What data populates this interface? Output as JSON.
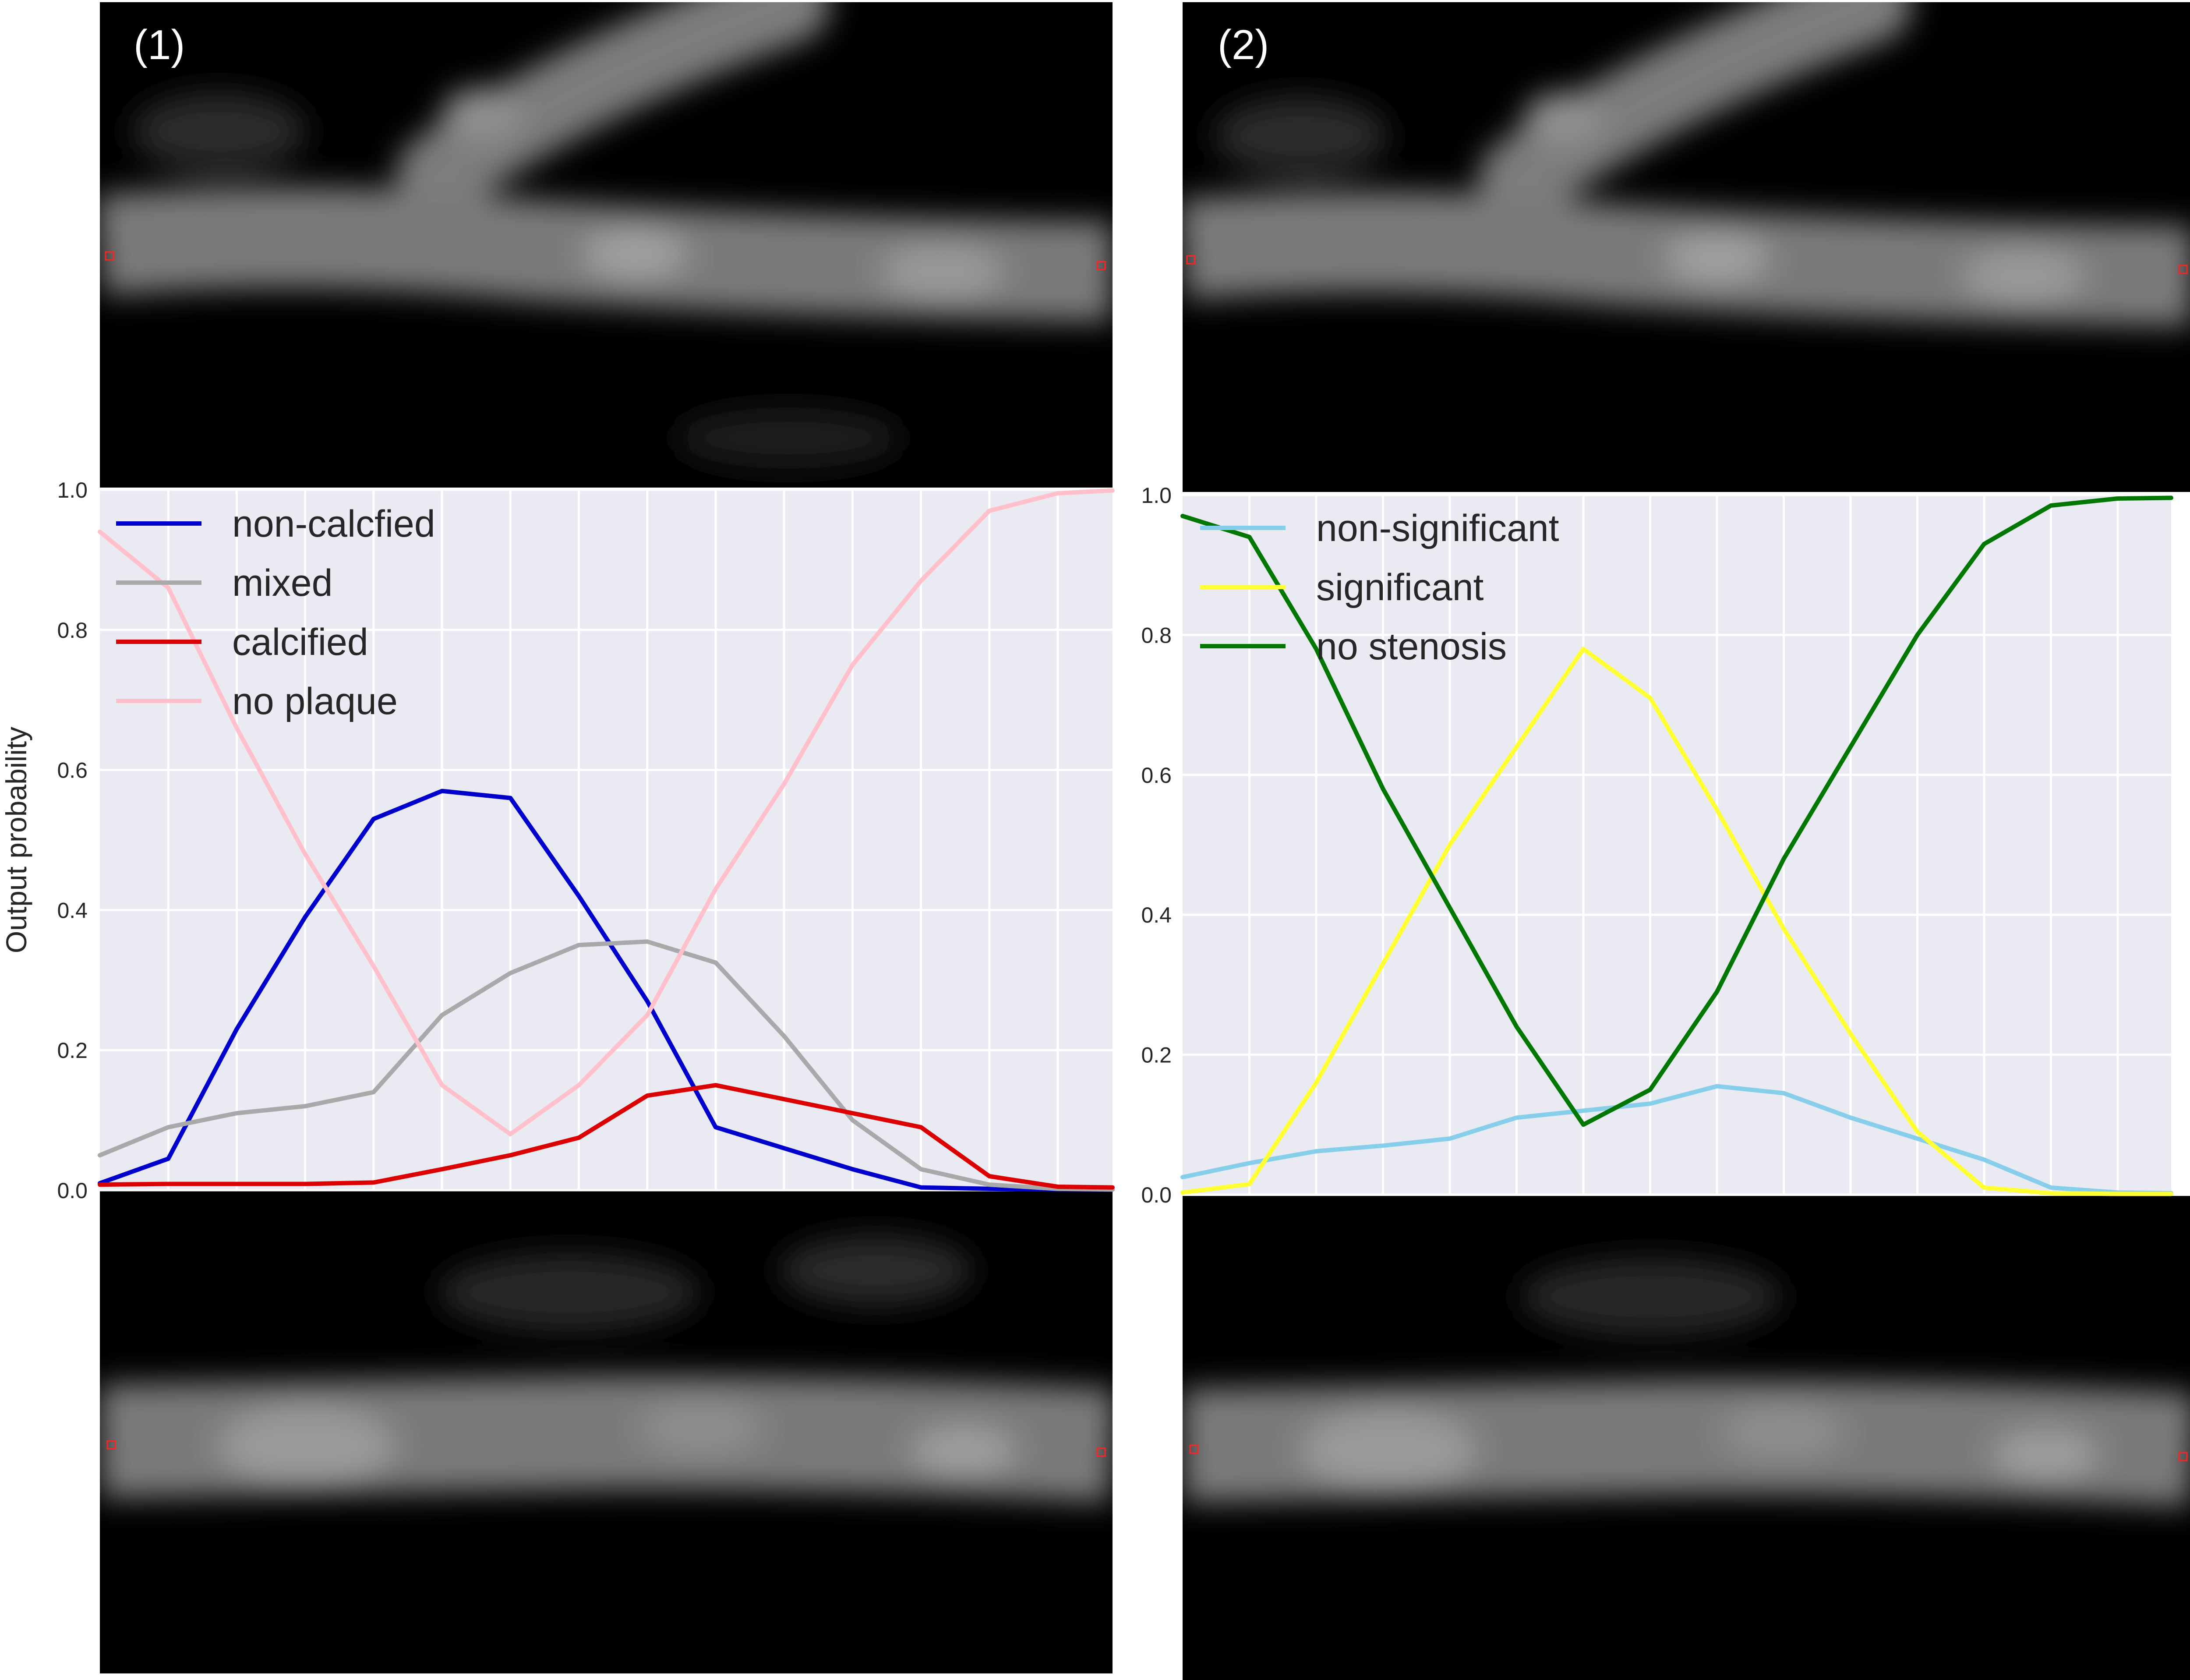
{
  "panels": [
    {
      "label": "(1)"
    },
    {
      "label": "(2)"
    }
  ],
  "chart_data": [
    {
      "type": "line",
      "ylabel": "Output probability",
      "ylim": [
        0,
        1
      ],
      "xlim": [
        0,
        14.8
      ],
      "yticks": [
        "0.0",
        "0.2",
        "0.4",
        "0.6",
        "0.8",
        "1.0"
      ],
      "grid": true,
      "legend": "top-left",
      "series": [
        {
          "name": "non-calcfied",
          "color": "#0000cc",
          "x": [
            0,
            1,
            2,
            3,
            4,
            5,
            6,
            7,
            8,
            9,
            10,
            11,
            12,
            13,
            14,
            14.8
          ],
          "y": [
            0.01,
            0.045,
            0.23,
            0.39,
            0.53,
            0.57,
            0.56,
            0.42,
            0.27,
            0.09,
            0.06,
            0.03,
            0.004,
            0.002,
            0.001,
            0.001
          ]
        },
        {
          "name": "mixed",
          "color": "#a9a9a9",
          "x": [
            0,
            1,
            2,
            3,
            4,
            5,
            6,
            7,
            8,
            9,
            10,
            11,
            12,
            13,
            14,
            14.8
          ],
          "y": [
            0.05,
            0.09,
            0.11,
            0.12,
            0.14,
            0.25,
            0.31,
            0.35,
            0.355,
            0.325,
            0.22,
            0.1,
            0.03,
            0.008,
            0.002,
            0.001
          ]
        },
        {
          "name": "calcified",
          "color": "#dd0000",
          "x": [
            0,
            1,
            2,
            3,
            4,
            5,
            6,
            7,
            8,
            9,
            10,
            11,
            12,
            13,
            14,
            14.8
          ],
          "y": [
            0.008,
            0.009,
            0.009,
            0.009,
            0.011,
            0.03,
            0.05,
            0.075,
            0.135,
            0.15,
            0.13,
            0.11,
            0.09,
            0.02,
            0.005,
            0.004
          ]
        },
        {
          "name": "no plaque",
          "color": "#ffc0cb",
          "x": [
            0,
            1,
            2,
            3,
            4,
            5,
            6,
            7,
            8,
            9,
            10,
            11,
            12,
            13,
            14,
            14.8
          ],
          "y": [
            0.94,
            0.86,
            0.66,
            0.48,
            0.32,
            0.15,
            0.08,
            0.15,
            0.25,
            0.43,
            0.58,
            0.75,
            0.87,
            0.97,
            0.995,
            0.999
          ]
        }
      ]
    },
    {
      "type": "line",
      "ylabel": "",
      "ylim": [
        0,
        1
      ],
      "xlim": [
        0,
        14.8
      ],
      "yticks": [
        "0.0",
        "0.2",
        "0.4",
        "0.6",
        "0.8",
        "1.0"
      ],
      "grid": true,
      "legend": "top-left",
      "series": [
        {
          "name": "non-significant",
          "color": "#87ceeb",
          "x": [
            0,
            1,
            2,
            3,
            4,
            5,
            6,
            7,
            8,
            9,
            10,
            11,
            12,
            13,
            14,
            14.8
          ],
          "y": [
            0.025,
            0.045,
            0.062,
            0.07,
            0.08,
            0.11,
            0.12,
            0.13,
            0.155,
            0.145,
            0.11,
            0.08,
            0.05,
            0.01,
            0.003,
            0.002
          ]
        },
        {
          "name": "significant",
          "color": "#ffff33",
          "x": [
            0,
            1,
            2,
            3,
            4,
            5,
            6,
            7,
            8,
            9,
            10,
            11,
            12,
            13,
            14,
            14.8
          ],
          "y": [
            0.003,
            0.015,
            0.16,
            0.33,
            0.5,
            0.64,
            0.78,
            0.71,
            0.55,
            0.38,
            0.23,
            0.09,
            0.01,
            0.002,
            0.001,
            0.001
          ]
        },
        {
          "name": "no stenosis",
          "color": "#007700",
          "x": [
            0,
            1,
            2,
            3,
            4,
            5,
            6,
            7,
            8,
            9,
            10,
            11,
            12,
            13,
            14,
            14.8
          ],
          "y": [
            0.97,
            0.94,
            0.78,
            0.58,
            0.41,
            0.24,
            0.1,
            0.15,
            0.29,
            0.48,
            0.64,
            0.8,
            0.93,
            0.985,
            0.995,
            0.996
          ]
        }
      ]
    }
  ]
}
